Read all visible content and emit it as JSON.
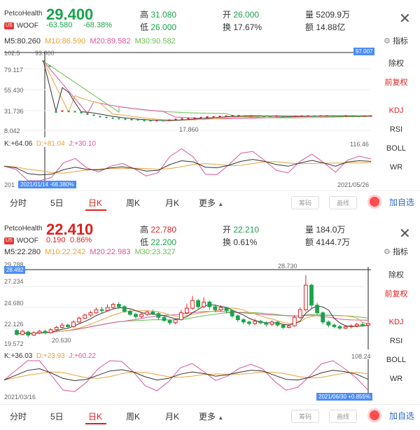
{
  "colors": {
    "up": "#e02020",
    "down": "#1aa34a",
    "blue": "#4c8df6",
    "accent": "#2a6ad0"
  },
  "panels": [
    {
      "company": "PetcoHealth",
      "market": "US",
      "symbol": "WOOF",
      "price": "29.400",
      "change": "-63.580",
      "change_pct": "-68.38%",
      "stats": {
        "high_label": "高",
        "high": "31.080",
        "low_label": "低",
        "low": "26.000",
        "open_label": "开",
        "open": "26.000",
        "turnover_label": "换",
        "turnover": "17.67%",
        "volume_label": "量",
        "volume": "5209.9万",
        "amount_label": "额",
        "amount": "14.88亿"
      },
      "ma": {
        "m5": "M5:80.260",
        "m10": "M10:86.590",
        "m20": "M20:89.582",
        "m30": "M30:90.582"
      },
      "indicator_icon": "gear-icon",
      "indicator_label": "指标",
      "y_labels": [
        "102.5",
        "79.117",
        "55.430",
        "31.736",
        "8.042"
      ],
      "top_marker": "93.000",
      "right_badge": "97.007",
      "low_marker": "17.860",
      "kdj": {
        "k": "K:+64.06",
        "d": "D:+81.04",
        "j": "J:+30.10",
        "max": "116.46"
      },
      "date_left": "201",
      "date_badge": "2021/01/14 -68.380%",
      "date_right": "2021/05/26",
      "side": [
        "除权",
        "前复权",
        "KDJ",
        "RSI",
        "BOLL",
        "WR"
      ],
      "tabs": [
        "分时",
        "5日",
        "日K",
        "周K",
        "月K",
        "更多"
      ],
      "btn_chip": "筹码",
      "btn_draw": "画线",
      "add": "加自选",
      "price_trend": [
        92.0,
        86.0,
        30.2,
        31.4,
        31.0,
        30.6,
        29.4,
        27.6,
        26.3,
        24.6,
        23.7,
        22.8,
        22.2,
        21.4,
        21.0,
        20.6,
        19.7,
        19.6,
        19.7,
        19.6,
        20.3,
        21.2,
        21.8,
        22.3,
        22.8,
        23.5,
        24.1,
        24.3,
        24.8,
        25.3,
        25.7,
        25.7,
        25.5,
        25.6,
        25.3,
        25.1,
        25.0,
        25.3,
        25.0,
        24.8,
        25.0,
        25.2,
        25.4,
        25.3,
        25.5,
        25.5,
        25.3,
        25.2,
        25.6,
        25.4,
        25.1,
        25.3,
        25.4
      ],
      "kdj_k": [
        45,
        40,
        22,
        18,
        20,
        34,
        42,
        35,
        33,
        40,
        43,
        38,
        30,
        32,
        50,
        62,
        58,
        42,
        40,
        48,
        60,
        66,
        60,
        50,
        45,
        55,
        63,
        55,
        45,
        58,
        62,
        60
      ]
    },
    {
      "company": "PetcoHealth",
      "market": "US",
      "symbol": "WOOF",
      "price": "22.410",
      "change": "0.190",
      "change_pct": "0.86%",
      "stats": {
        "high_label": "高",
        "high": "22.780",
        "low_label": "低",
        "low": "22.200",
        "open_label": "开",
        "open": "22.210",
        "turnover_label": "换",
        "turnover": "0.61%",
        "volume_label": "量",
        "volume": "184.0万",
        "amount_label": "额",
        "amount": "4144.7万"
      },
      "ma": {
        "m5": "M5:22.280",
        "m10": "M10:22.242",
        "m20": "M20:22.983",
        "m30": "M30:23.327"
      },
      "indicator_icon": "gear-icon",
      "indicator_label": "指标",
      "y_labels": [
        "29.788",
        "27.234",
        "24.680",
        "22.126",
        "19.572"
      ],
      "top_marker": "28.730",
      "right_badge": "28.492",
      "low_marker": "20.630",
      "kdj": {
        "k": "K:+36.03",
        "d": "D:+23.93",
        "j": "J:+60.22",
        "max": "108.24"
      },
      "date_left": "2021/03/16",
      "date_badge": "2021/06/30 +0.855%",
      "date_right": "",
      "side": [
        "除权",
        "前复权",
        "KDJ",
        "RSI",
        "BOLL",
        "WR"
      ],
      "tabs": [
        "分时",
        "5日",
        "日K",
        "周K",
        "月K",
        "更多"
      ],
      "btn_chip": "筹码",
      "btn_draw": "画线",
      "add": "加自选",
      "candles": [
        [
          21.5,
          21.0,
          21.7,
          20.8
        ],
        [
          21.0,
          21.4,
          21.6,
          20.9
        ],
        [
          21.3,
          20.9,
          21.5,
          20.6
        ],
        [
          20.9,
          21.2,
          21.4,
          20.8
        ],
        [
          21.2,
          21.4,
          21.6,
          21.0
        ],
        [
          21.4,
          21.2,
          21.6,
          21.0
        ],
        [
          21.2,
          21.6,
          21.8,
          21.1
        ],
        [
          21.6,
          21.9,
          22.1,
          21.5
        ],
        [
          21.9,
          22.2,
          22.5,
          21.8
        ],
        [
          22.2,
          22.0,
          22.4,
          21.8
        ],
        [
          22.0,
          22.6,
          22.8,
          21.9
        ],
        [
          22.6,
          23.1,
          23.3,
          22.5
        ],
        [
          23.1,
          23.5,
          23.7,
          23.0
        ],
        [
          23.5,
          23.8,
          24.1,
          23.3
        ],
        [
          23.8,
          24.2,
          24.5,
          23.7
        ],
        [
          24.2,
          24.1,
          24.6,
          23.8
        ],
        [
          24.1,
          24.5,
          24.9,
          24.0
        ],
        [
          24.5,
          24.9,
          25.1,
          24.3
        ],
        [
          24.9,
          24.6,
          25.2,
          24.3
        ],
        [
          24.6,
          24.0,
          24.8,
          23.8
        ],
        [
          24.0,
          23.6,
          24.2,
          23.4
        ],
        [
          23.6,
          23.3,
          23.8,
          23.0
        ],
        [
          23.3,
          23.6,
          23.9,
          23.1
        ],
        [
          23.6,
          23.9,
          24.1,
          23.4
        ],
        [
          23.9,
          23.7,
          24.2,
          23.5
        ],
        [
          23.7,
          23.2,
          23.9,
          22.9
        ],
        [
          23.2,
          22.8,
          23.4,
          22.6
        ],
        [
          22.8,
          22.5,
          23.0,
          22.2
        ],
        [
          22.5,
          22.9,
          23.1,
          22.3
        ],
        [
          22.9,
          23.8,
          24.2,
          22.8
        ],
        [
          23.8,
          24.4,
          25.0,
          23.6
        ],
        [
          24.4,
          25.4,
          26.0,
          24.2
        ],
        [
          25.4,
          24.6,
          25.6,
          24.3
        ],
        [
          24.6,
          25.2,
          25.8,
          24.4
        ],
        [
          25.2,
          24.6,
          25.4,
          24.2
        ],
        [
          24.6,
          24.2,
          24.9,
          23.9
        ],
        [
          24.2,
          24.5,
          24.8,
          24.0
        ],
        [
          24.5,
          24.1,
          24.6,
          23.7
        ],
        [
          24.1,
          23.4,
          24.2,
          23.1
        ],
        [
          23.4,
          22.9,
          23.6,
          22.6
        ],
        [
          22.9,
          22.6,
          23.1,
          22.3
        ],
        [
          22.6,
          22.4,
          22.8,
          22.1
        ],
        [
          22.4,
          22.7,
          23.0,
          22.2
        ],
        [
          22.7,
          22.5,
          22.9,
          22.3
        ],
        [
          22.5,
          22.3,
          22.7,
          22.0
        ],
        [
          22.3,
          22.6,
          22.8,
          22.1
        ],
        [
          22.6,
          22.2,
          22.7,
          22.0
        ],
        [
          22.2,
          21.9,
          22.3,
          21.7
        ],
        [
          21.9,
          22.1,
          22.3,
          21.8
        ],
        [
          22.1,
          23.2,
          23.5,
          22.0
        ],
        [
          23.2,
          24.2,
          24.5,
          23.0
        ],
        [
          24.2,
          27.4,
          28.7,
          24.0
        ],
        [
          27.4,
          24.8,
          27.6,
          24.3
        ],
        [
          24.8,
          23.8,
          25.1,
          23.5
        ],
        [
          23.8,
          22.6,
          24.0,
          22.3
        ],
        [
          22.6,
          22.2,
          22.8,
          21.9
        ],
        [
          22.2,
          22.0,
          22.4,
          21.8
        ],
        [
          22.0,
          21.8,
          22.2,
          21.6
        ],
        [
          21.8,
          22.0,
          22.2,
          21.7
        ],
        [
          22.0,
          22.1,
          22.3,
          21.8
        ],
        [
          22.1,
          22.3,
          22.5,
          21.9
        ],
        [
          22.3,
          22.2,
          22.6,
          22.0
        ],
        [
          22.2,
          22.4,
          22.7,
          22.1
        ]
      ],
      "kdj_k": [
        40,
        55,
        70,
        75,
        62,
        45,
        38,
        42,
        55,
        68,
        72,
        65,
        50,
        40,
        45,
        58,
        65,
        60,
        52,
        56,
        64,
        70,
        68,
        55,
        42,
        40,
        48,
        62,
        70,
        66,
        58,
        42
      ]
    }
  ]
}
